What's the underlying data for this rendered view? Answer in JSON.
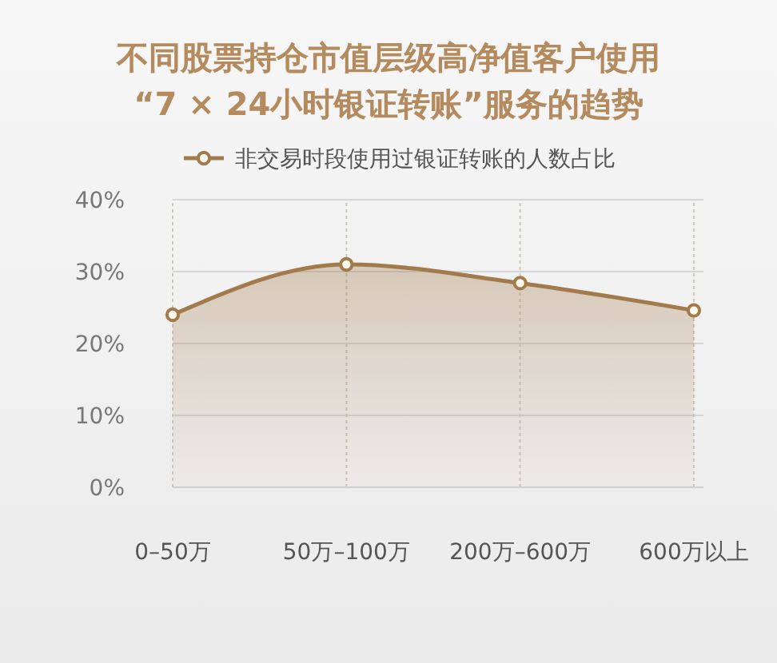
{
  "chart_data": {
    "type": "area",
    "title": "不同股票持仓市值层级高净值客户使用\n“7 × 24小时银证转账”服务的趋势",
    "categories": [
      "0–50万",
      "50万–100万",
      "200万–600万",
      "600万以上"
    ],
    "series": [
      {
        "name": "非交易时段使用过银证转账的人数占比",
        "color": "#a27a4c",
        "values": [
          24,
          31,
          28.4,
          24.6
        ]
      }
    ],
    "ylim": [
      0,
      40
    ],
    "yticks": [
      {
        "value": 0,
        "label": "0%"
      },
      {
        "value": 10,
        "label": "10%"
      },
      {
        "value": 20,
        "label": "20%"
      },
      {
        "value": 30,
        "label": "30%"
      },
      {
        "value": 40,
        "label": "40%"
      }
    ],
    "grid": true,
    "legend": "top",
    "marker": "circle"
  }
}
